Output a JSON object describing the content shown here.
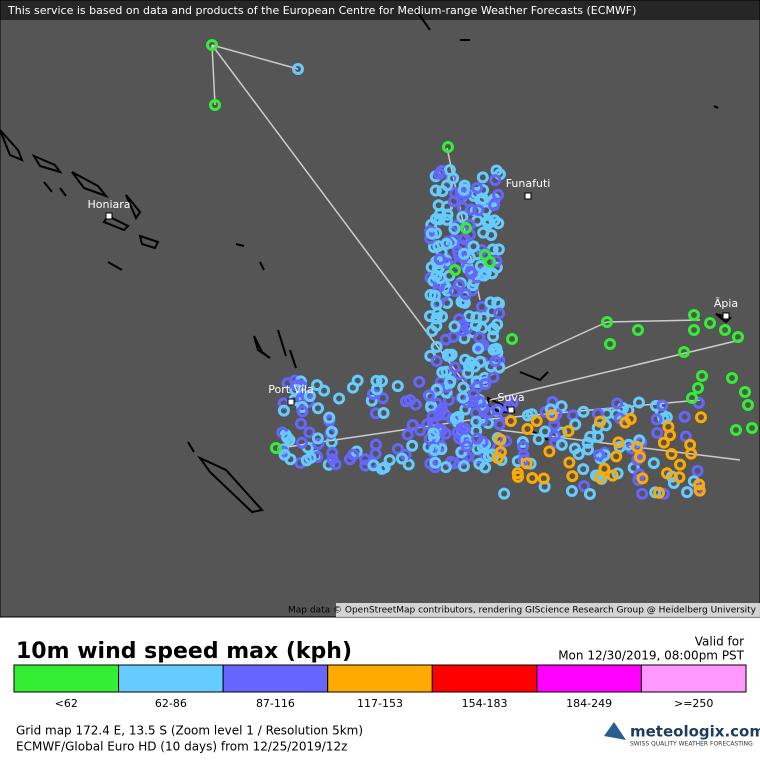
{
  "header": {
    "notice": "This service is based on data and products of the European Centre for Medium-range Weather Forecasts (ECMWF)"
  },
  "map": {
    "places": [
      "Funafuti",
      "Honiara",
      "Port Vila",
      "Suva",
      "Āpia"
    ],
    "attribution": "Map data © OpenStreetMap contributors, rendering GIScience Research Group @ Heidelberg University"
  },
  "legend": {
    "title": "10m wind speed max (kph)",
    "valid_label": "Valid for",
    "valid_time": "Mon 12/30/2019, 08:00pm PST",
    "bins": [
      {
        "label": "<62",
        "color": "#33ee33"
      },
      {
        "label": "62-86",
        "color": "#66ccff"
      },
      {
        "label": "87-116",
        "color": "#6666ff"
      },
      {
        "label": "117-153",
        "color": "#ffaa00"
      },
      {
        "label": "154-183",
        "color": "#ff0000"
      },
      {
        "label": "184-249",
        "color": "#ff00ff"
      },
      {
        "label": ">=250",
        "color": "#ff99ff"
      }
    ]
  },
  "footer": {
    "grid": "Grid map 172.4 E, 13.5 S (Zoom level 1 / Resolution 5km)",
    "model": "ECMWF/Global Euro HD (10 days)  from  12/25/2019/12z",
    "logo": "meteologix.com",
    "tagline": "SWISS QUALITY WEATHER FORECASTING"
  }
}
